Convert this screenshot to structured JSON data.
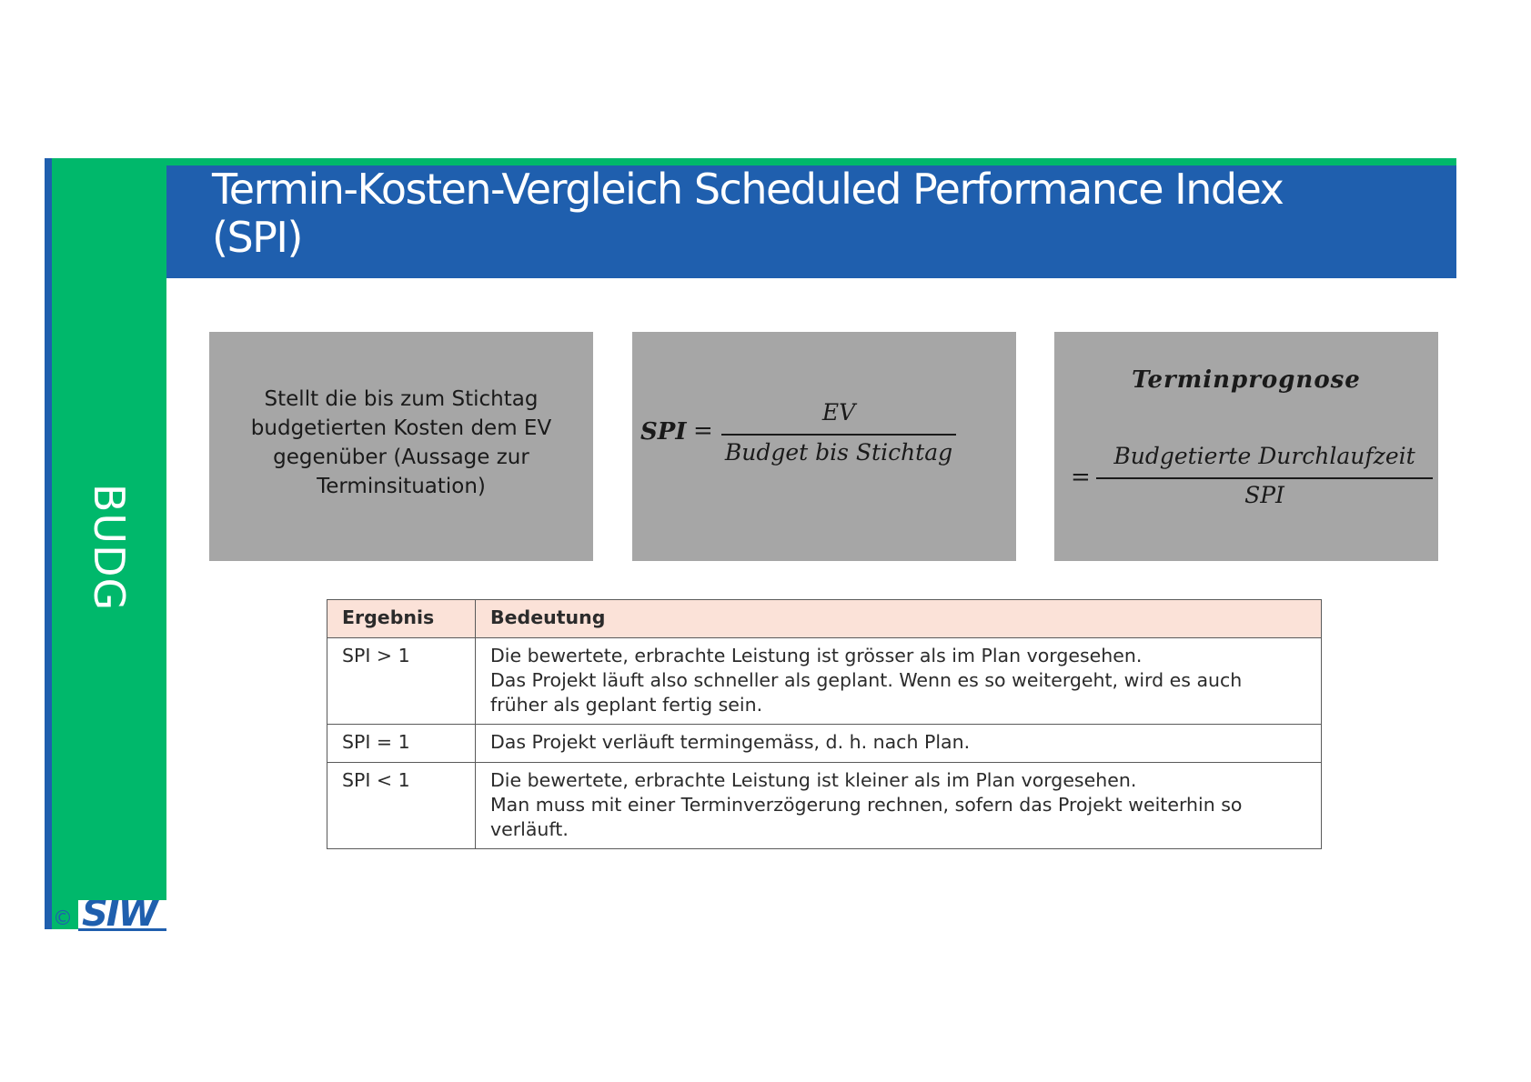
{
  "sidebar": {
    "label": "BUDG",
    "copyright": "©",
    "logo": "SIW"
  },
  "header": {
    "title_line1": "Termin-Kosten-Vergleich Scheduled Performance Index",
    "title_line2": "(SPI)"
  },
  "boxes": {
    "description": {
      "lines": [
        "Stellt die bis zum Stichtag",
        "budgetierten Kosten dem EV",
        "gegenüber (Aussage zur",
        "Terminsituation)"
      ]
    },
    "formula": {
      "lhs": "SPI",
      "equals": "=",
      "numerator": "EV",
      "denominator": "Budget bis Stichtag"
    },
    "forecast": {
      "title": "Terminprognose",
      "equals": "=",
      "numerator": "Budgetierte Durchlaufzeit",
      "denominator": "SPI"
    }
  },
  "table": {
    "headers": [
      "Ergebnis",
      "Bedeutung"
    ],
    "rows": [
      {
        "result": "SPI > 1",
        "meaning": [
          "Die bewertete, erbrachte Leistung ist grösser als im Plan vorgesehen.",
          "Das Projekt läuft also schneller als geplant. Wenn es so weitergeht, wird es auch",
          "früher als geplant fertig sein."
        ]
      },
      {
        "result": "SPI = 1",
        "meaning": [
          "Das Projekt verläuft termingemäss, d. h. nach Plan."
        ]
      },
      {
        "result": "SPI < 1",
        "meaning": [
          "Die bewertete, erbrachte Leistung ist kleiner als im Plan vorgesehen.",
          "Man muss mit einer Terminverzögerung rechnen, sofern das Projekt weiterhin so",
          "verläuft."
        ]
      }
    ]
  },
  "colors": {
    "brand_green": "#00b86b",
    "brand_blue": "#1f5fae",
    "box_gray": "#a6a6a6",
    "table_header_bg": "#fbe2d8"
  }
}
